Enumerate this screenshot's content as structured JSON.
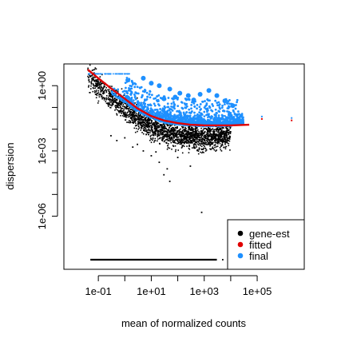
{
  "chart_data": {
    "type": "scatter",
    "title": "",
    "xlabel": "mean of normalized counts",
    "ylabel": "dispersion",
    "x_scale": "log10",
    "y_scale": "log10",
    "xlim": [
      0.005,
      6000000
    ],
    "ylim": [
      1e-08,
      10
    ],
    "x_ticks": [
      {
        "value": 0.1,
        "label": "1e-01"
      },
      {
        "value": 10,
        "label": "1e+01"
      },
      {
        "value": 1000,
        "label": "1e+03"
      },
      {
        "value": 100000,
        "label": "1e+05"
      }
    ],
    "y_ticks": [
      {
        "value": 1,
        "label": "1e+00"
      },
      {
        "value": 0.001,
        "label": "1e-03"
      },
      {
        "value": 1e-06,
        "label": "1e-06"
      }
    ],
    "legend": {
      "position": "bottom-right",
      "entries": [
        {
          "label": "gene-est",
          "color": "#000000"
        },
        {
          "label": "fitted",
          "color": "#e00000"
        },
        {
          "label": "final",
          "color": "#1e90ff"
        }
      ]
    },
    "series": [
      {
        "name": "fitted",
        "kind": "line",
        "color": "#e00000",
        "x": [
          0.04,
          0.1,
          0.3,
          1,
          3,
          10,
          30,
          100,
          300,
          1000,
          3000,
          10000,
          50000
        ],
        "y": [
          5.5,
          2.2,
          0.75,
          0.25,
          0.09,
          0.04,
          0.025,
          0.019,
          0.016,
          0.015,
          0.015,
          0.015,
          0.016
        ]
      },
      {
        "name": "gene-est",
        "kind": "points",
        "color": "#000000",
        "cloud": {
          "trend_x": [
            0.04,
            0.1,
            0.3,
            1,
            3,
            10,
            30,
            100,
            300,
            1000,
            3000,
            10000
          ],
          "trend_y": [
            3.0,
            1.2,
            0.4,
            0.12,
            0.045,
            0.018,
            0.01,
            0.007,
            0.006,
            0.0055,
            0.006,
            0.008
          ],
          "floor_y": 1e-08,
          "floor_x_range": [
            0.05,
            3000
          ]
        },
        "outliers": [
          {
            "x": 0.3,
            "y": 0.005
          },
          {
            "x": 0.5,
            "y": 0.003
          },
          {
            "x": 1,
            "y": 0.004
          },
          {
            "x": 2,
            "y": 0.0015
          },
          {
            "x": 5,
            "y": 0.001
          },
          {
            "x": 10,
            "y": 0.0006
          },
          {
            "x": 20,
            "y": 0.0003
          },
          {
            "x": 30,
            "y": 8e-05
          },
          {
            "x": 50,
            "y": 4e-05
          },
          {
            "x": 100,
            "y": 0.0005
          },
          {
            "x": 300,
            "y": 0.0002
          },
          {
            "x": 800,
            "y": 1.5e-06
          },
          {
            "x": 40,
            "y": 0.00015
          },
          {
            "x": 15,
            "y": 0.0009
          },
          {
            "x": 3,
            "y": 0.002
          }
        ],
        "floor_outliers": [
          {
            "x": 5000,
            "y": 1e-08
          },
          {
            "x": 8000,
            "y": 1e-08
          }
        ]
      },
      {
        "name": "final",
        "kind": "points",
        "color": "#1e90ff",
        "cloud": {
          "trend_x": [
            0.04,
            0.1,
            0.3,
            1,
            3,
            10,
            30,
            100,
            300,
            1000,
            3000,
            10000,
            30000
          ],
          "trend_y": [
            3.5,
            1.5,
            0.5,
            0.18,
            0.07,
            0.035,
            0.022,
            0.018,
            0.016,
            0.015,
            0.015,
            0.016,
            0.02
          ]
        },
        "top_row_y": 3.5,
        "top_row_x_range": [
          0.04,
          1.5
        ],
        "large_points": [
          {
            "x": 5,
            "y": 2.2
          },
          {
            "x": 10,
            "y": 1.3
          },
          {
            "x": 20,
            "y": 1.0
          },
          {
            "x": 50,
            "y": 0.7
          },
          {
            "x": 120,
            "y": 0.45
          },
          {
            "x": 250,
            "y": 0.35
          },
          {
            "x": 700,
            "y": 0.4
          },
          {
            "x": 1500,
            "y": 0.6
          },
          {
            "x": 3000,
            "y": 0.35
          },
          {
            "x": 6000,
            "y": 0.2
          },
          {
            "x": 12000,
            "y": 0.12
          },
          {
            "x": 30,
            "y": 0.25
          },
          {
            "x": 80,
            "y": 0.3
          },
          {
            "x": 400,
            "y": 0.22
          }
        ],
        "isolated": [
          {
            "x": 150000,
            "y": 0.035
          },
          {
            "x": 2000000,
            "y": 0.03
          }
        ]
      }
    ]
  }
}
